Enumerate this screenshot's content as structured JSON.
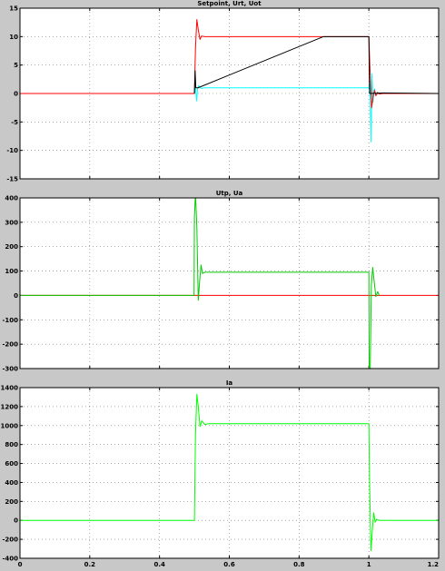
{
  "chart_data": [
    {
      "type": "line",
      "title": "Setpoint, Urt, Uot",
      "xlim": [
        0,
        1.2
      ],
      "ylim": [
        -15,
        15
      ],
      "yticks": [
        15,
        10,
        5,
        0,
        -5,
        -10,
        -15
      ],
      "xticks": [
        0,
        0.2,
        0.4,
        0.6,
        0.8,
        1,
        1.2
      ],
      "xtick_labels": [],
      "grid": true,
      "series": [
        {
          "color": "#00ffff",
          "points": [
            [
              0,
              0
            ],
            [
              0.5,
              0
            ],
            [
              0.503,
              1.5
            ],
            [
              0.506,
              -1.3
            ],
            [
              0.509,
              0.8
            ],
            [
              0.512,
              1.4
            ],
            [
              0.515,
              1.1
            ],
            [
              0.52,
              0.9
            ],
            [
              0.53,
              1.0
            ],
            [
              1.0,
              1.0
            ],
            [
              1.003,
              2.2
            ],
            [
              1.006,
              -8.5
            ],
            [
              1.009,
              3.5
            ],
            [
              1.012,
              -1.5
            ],
            [
              1.016,
              0.8
            ],
            [
              1.02,
              -0.3
            ],
            [
              1.03,
              0.1
            ],
            [
              1.04,
              0
            ],
            [
              1.2,
              0
            ]
          ]
        },
        {
          "color": "#ff0000",
          "points": [
            [
              0,
              0
            ],
            [
              0.5,
              0
            ],
            [
              0.503,
              8
            ],
            [
              0.507,
              13
            ],
            [
              0.511,
              11.2
            ],
            [
              0.516,
              9.5
            ],
            [
              0.52,
              10.1
            ],
            [
              0.53,
              10
            ],
            [
              1.0,
              10
            ],
            [
              1.004,
              3
            ],
            [
              1.008,
              -2.5
            ],
            [
              1.012,
              -0.5
            ],
            [
              1.016,
              0.6
            ],
            [
              1.02,
              -0.4
            ],
            [
              1.025,
              0.2
            ],
            [
              1.03,
              -0.1
            ],
            [
              1.04,
              0
            ],
            [
              1.2,
              0
            ]
          ]
        },
        {
          "color": "#000000",
          "points": [
            [
              0.5,
              0
            ],
            [
              0.502,
              4
            ],
            [
              0.504,
              1
            ],
            [
              0.51,
              1
            ],
            [
              0.87,
              10
            ],
            [
              1.0,
              10
            ],
            [
              1.002,
              0
            ],
            [
              1.04,
              0.1
            ],
            [
              1.2,
              0
            ]
          ]
        }
      ]
    },
    {
      "type": "line",
      "title": "Utp, Ua",
      "xlim": [
        0,
        1.2
      ],
      "ylim": [
        -300,
        400
      ],
      "yticks": [
        400,
        300,
        200,
        100,
        0,
        -100,
        -200,
        -300
      ],
      "xticks": [
        0,
        0.2,
        0.4,
        0.6,
        0.8,
        1,
        1.2
      ],
      "xtick_labels": [],
      "grid": true,
      "series": [
        {
          "color": "#ff0000",
          "points": [
            [
              0,
              0
            ],
            [
              1.2,
              0
            ]
          ]
        },
        {
          "color": "#00cc00",
          "points": [
            [
              0,
              0
            ],
            [
              0.499,
              0
            ],
            [
              0.5,
              320
            ],
            [
              0.503,
              420
            ],
            [
              0.507,
              280
            ],
            [
              0.511,
              -20
            ],
            [
              0.515,
              60
            ],
            [
              0.519,
              125
            ],
            [
              0.523,
              90
            ],
            [
              0.53,
              95
            ],
            [
              1.0,
              95
            ],
            [
              1.001,
              -300
            ],
            [
              1.004,
              -300
            ],
            [
              1.007,
              40
            ],
            [
              1.011,
              115
            ],
            [
              1.015,
              60
            ],
            [
              1.02,
              -5
            ],
            [
              1.025,
              15
            ],
            [
              1.03,
              0
            ]
          ]
        }
      ]
    },
    {
      "type": "line",
      "title": "Ia",
      "xlim": [
        0,
        1.2
      ],
      "ylim": [
        -400,
        1400
      ],
      "yticks": [
        1400,
        1200,
        1000,
        800,
        600,
        400,
        200,
        0,
        -200,
        -400
      ],
      "xticks": [
        0,
        0.2,
        0.4,
        0.6,
        0.8,
        1,
        1.2
      ],
      "xtick_labels": [
        "0",
        "0.2",
        "0.4",
        "0.6",
        "0.8",
        "1",
        "1.2"
      ],
      "grid": true,
      "series": [
        {
          "color": "#00ff00",
          "points": [
            [
              0,
              0
            ],
            [
              0.5,
              0
            ],
            [
              0.503,
              900
            ],
            [
              0.507,
              1330
            ],
            [
              0.511,
              1200
            ],
            [
              0.516,
              990
            ],
            [
              0.521,
              1050
            ],
            [
              0.53,
              1010
            ],
            [
              0.54,
              1020
            ],
            [
              1.0,
              1020
            ],
            [
              1.002,
              400
            ],
            [
              1.006,
              -320
            ],
            [
              1.01,
              -100
            ],
            [
              1.014,
              80
            ],
            [
              1.018,
              -20
            ],
            [
              1.022,
              10
            ],
            [
              1.03,
              0
            ],
            [
              1.2,
              0
            ]
          ]
        }
      ]
    }
  ]
}
